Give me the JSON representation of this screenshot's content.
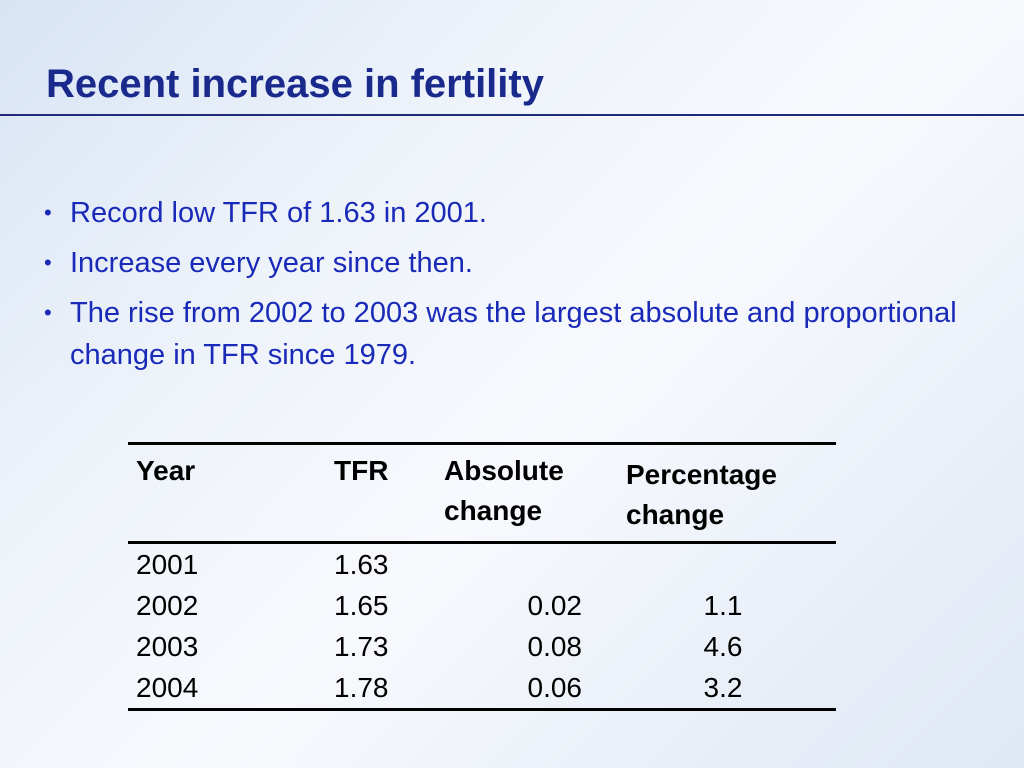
{
  "slide": {
    "title": "Recent increase in fertility",
    "bullets": [
      "Record low TFR of 1.63 in 2001.",
      "Increase every year since then.",
      "The rise from 2002 to 2003 was the largest absolute and proportional change in TFR since 1979."
    ],
    "bullet_marker": "•",
    "colors": {
      "title": "#1a2a8c",
      "bullet_text": "#1a2ab8",
      "rule": "#1f2a78"
    }
  },
  "table": {
    "headers": [
      "Year",
      "TFR",
      "Absolute change",
      "Percentage change"
    ],
    "rows": [
      [
        "2001",
        "1.63",
        "",
        ""
      ],
      [
        "2002",
        "1.65",
        "0.02",
        "1.1"
      ],
      [
        "2003",
        "1.73",
        "0.08",
        "4.6"
      ],
      [
        "2004",
        "1.78",
        "0.06",
        "3.2"
      ]
    ]
  }
}
